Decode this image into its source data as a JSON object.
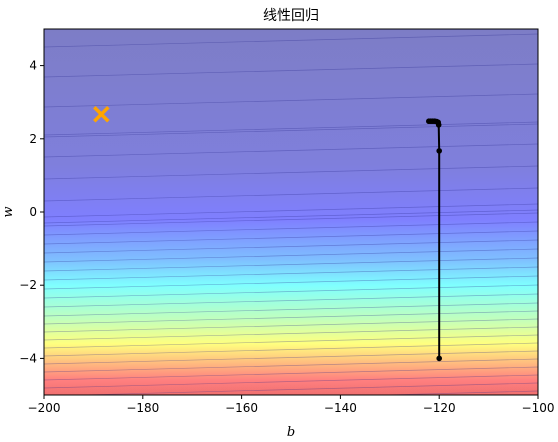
{
  "chart_data": {
    "type": "contour",
    "title": "线性回归",
    "xlabel": "b",
    "ylabel": "w",
    "xlim": [
      -200,
      -100
    ],
    "ylim": [
      -5,
      5
    ],
    "x_ticks": [
      -200,
      -180,
      -160,
      -140,
      -120,
      -100
    ],
    "y_ticks": [
      -4,
      -2,
      0,
      2,
      4
    ],
    "x_tick_labels": [
      "−200",
      "−180",
      "−160",
      "−140",
      "−120",
      "−100"
    ],
    "y_tick_labels": [
      "−4",
      "−2",
      "0",
      "2",
      "4"
    ],
    "colormap": "jet",
    "fill_alpha": 0.5,
    "grid": false,
    "optimum": {
      "b": -188.4,
      "w": 2.67,
      "marker": "x",
      "color": "#ffa500"
    },
    "trajectory": {
      "color": "#000000",
      "points": [
        {
          "b": -120,
          "w": -4.0
        },
        {
          "b": -120,
          "w": 1.67
        },
        {
          "b": -120.1,
          "w": 2.38
        },
        {
          "b": -120.2,
          "w": 2.45
        },
        {
          "b": -120.5,
          "w": 2.47
        },
        {
          "b": -120.9,
          "w": 2.48
        },
        {
          "b": -121.3,
          "w": 2.48
        },
        {
          "b": -121.7,
          "w": 2.48
        },
        {
          "b": -122.1,
          "w": 2.48
        }
      ]
    }
  }
}
